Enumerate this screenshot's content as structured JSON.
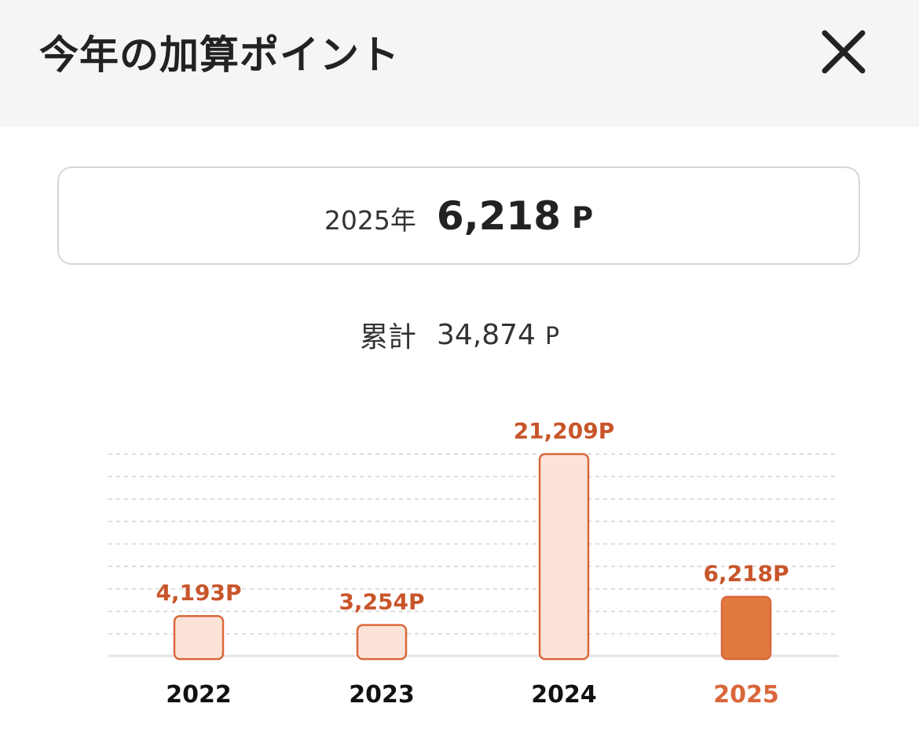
{
  "header": {
    "title": "今年の加算ポイント",
    "close_icon": "close-icon"
  },
  "summary": {
    "year_label": "2025年",
    "value": "6,218",
    "unit": "P"
  },
  "total": {
    "label": "累計",
    "value": "34,874",
    "unit": "P"
  },
  "colors": {
    "bar_fill": "#fbe3d8",
    "bar_stroke": "#d9673a",
    "bar_current_fill": "#e07a3e",
    "value_label": "#c8552a",
    "current_year_label": "#d9673a",
    "year_label": "#111111",
    "grid": "#dddddd"
  },
  "chart_data": {
    "type": "bar",
    "categories": [
      "2022",
      "2023",
      "2024",
      "2025"
    ],
    "values": [
      4193,
      3254,
      21209,
      6218
    ],
    "value_labels": [
      "4,193P",
      "3,254P",
      "21,209P",
      "6,218P"
    ],
    "highlight_index": 3,
    "ylim": [
      0,
      21209
    ],
    "grid": true
  }
}
